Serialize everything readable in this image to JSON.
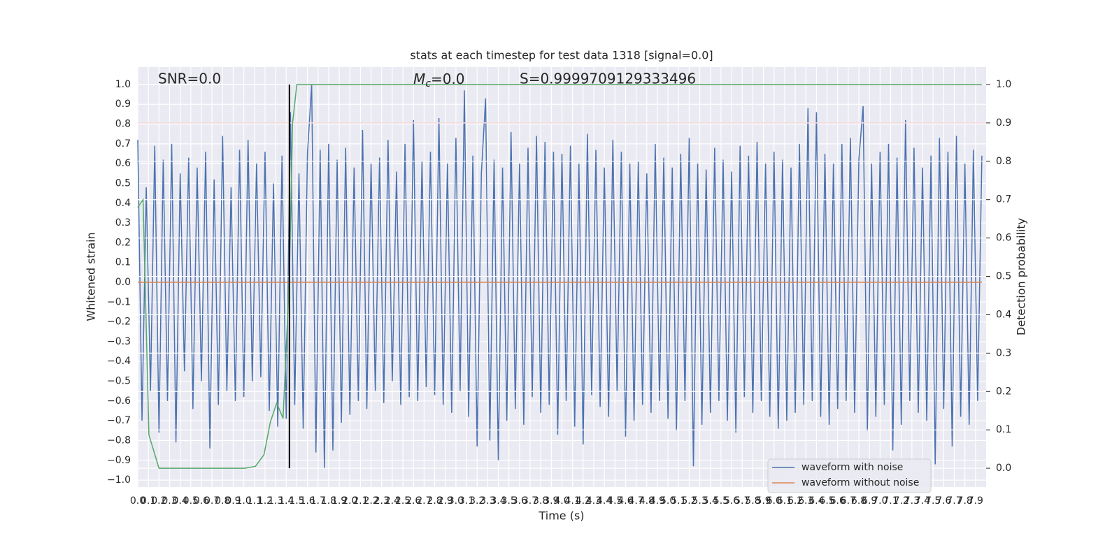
{
  "chart_data": {
    "type": "line",
    "title": "stats at each timestep for test data 1318 [signal=0.0]",
    "x_label": "Time (s)",
    "y_label": "Whitened strain",
    "y2_label": "Detection probability",
    "annotations": {
      "snr": "SNR=0.0",
      "mc": {
        "symbol": "M",
        "subscript": "c",
        "text": "=0.0"
      },
      "s": "S=0.9999709129333496"
    },
    "grid": true,
    "legend": "lower right",
    "xlim": [
      0,
      8
    ],
    "ylim": [
      -1.035,
      1.088
    ],
    "y2lim": [
      -0.049,
      1.0455
    ],
    "xticks": [
      {
        "value": 0,
        "label": "0.0"
      },
      0.1,
      0.2,
      0.3,
      0.4,
      0.5,
      0.6,
      0.7,
      0.8,
      0.9,
      {
        "value": 1,
        "label": "1.0"
      },
      1.1,
      1.2,
      1.3,
      1.4,
      1.5,
      1.6,
      1.7,
      1.8,
      1.9,
      {
        "value": 2,
        "label": "2.0"
      },
      2.1,
      2.2,
      2.3,
      2.4,
      2.5,
      2.6,
      2.7,
      2.8,
      2.9,
      {
        "value": 3,
        "label": "3.0"
      },
      3.1,
      3.2,
      3.3,
      3.4,
      3.5,
      3.6,
      3.7,
      3.8,
      3.9,
      {
        "value": 4,
        "label": "4.0"
      },
      4.1,
      4.2,
      4.3,
      4.4,
      4.5,
      4.6,
      4.7,
      4.8,
      4.9,
      {
        "value": 5,
        "label": "5.0"
      },
      5.1,
      5.2,
      5.3,
      5.4,
      5.5,
      5.6,
      5.7,
      5.8,
      5.9,
      {
        "value": 6,
        "label": "6.0"
      },
      6.1,
      6.2,
      6.3,
      6.4,
      6.5,
      6.6,
      6.7,
      6.8,
      6.9,
      {
        "value": 7,
        "label": "7.0"
      },
      7.1,
      7.2,
      7.3,
      7.4,
      7.5,
      7.6,
      7.7,
      7.8,
      7.9
    ],
    "yticks": [
      {
        "value": -1,
        "label": "−1.0"
      },
      {
        "value": -0.9,
        "label": "−0.9"
      },
      {
        "value": -0.8,
        "label": "−0.8"
      },
      {
        "value": -0.7,
        "label": "−0.7"
      },
      {
        "value": -0.6,
        "label": "−0.6"
      },
      {
        "value": -0.5,
        "label": "−0.5"
      },
      {
        "value": -0.4,
        "label": "−0.4"
      },
      {
        "value": -0.3,
        "label": "−0.3"
      },
      {
        "value": -0.2,
        "label": "−0.2"
      },
      {
        "value": -0.1,
        "label": "−0.1"
      },
      {
        "value": 0,
        "label": "0.0"
      },
      0.1,
      0.2,
      0.3,
      0.4,
      0.5,
      0.6,
      0.7,
      0.8,
      0.9,
      {
        "value": 1,
        "label": "1.0"
      }
    ],
    "y2ticks": [
      {
        "value": 0,
        "label": "0.0"
      },
      0.1,
      0.2,
      0.3,
      0.4,
      0.5,
      0.6,
      0.7,
      0.8,
      0.9,
      {
        "value": 1,
        "label": "1.0"
      }
    ],
    "series": [
      {
        "name": "waveform with noise",
        "color": "#4c72b0",
        "x": [
          0,
          0.04,
          0.08,
          0.12,
          0.16,
          0.2,
          0.24,
          0.28,
          0.32,
          0.36,
          0.4,
          0.44,
          0.48,
          0.52,
          0.56,
          0.6,
          0.64,
          0.68,
          0.72,
          0.76,
          0.8,
          0.84,
          0.88,
          0.92,
          0.96,
          1,
          1.04,
          1.08,
          1.12,
          1.16,
          1.2,
          1.24,
          1.28,
          1.32,
          1.36,
          1.4,
          1.44,
          1.48,
          1.52,
          1.56,
          1.6,
          1.64,
          1.68,
          1.72,
          1.76,
          1.8,
          1.84,
          1.88,
          1.92,
          1.96,
          2,
          2.04,
          2.08,
          2.12,
          2.16,
          2.2,
          2.24,
          2.28,
          2.32,
          2.36,
          2.4,
          2.44,
          2.48,
          2.52,
          2.56,
          2.6,
          2.64,
          2.68,
          2.72,
          2.76,
          2.8,
          2.84,
          2.88,
          2.92,
          2.96,
          3,
          3.04,
          3.08,
          3.12,
          3.16,
          3.2,
          3.24,
          3.28,
          3.32,
          3.36,
          3.4,
          3.44,
          3.48,
          3.52,
          3.56,
          3.6,
          3.64,
          3.68,
          3.72,
          3.76,
          3.8,
          3.84,
          3.88,
          3.92,
          3.96,
          4,
          4.04,
          4.08,
          4.12,
          4.16,
          4.2,
          4.24,
          4.28,
          4.32,
          4.36,
          4.4,
          4.44,
          4.48,
          4.52,
          4.56,
          4.6,
          4.64,
          4.68,
          4.72,
          4.76,
          4.8,
          4.84,
          4.88,
          4.92,
          4.96,
          5,
          5.04,
          5.08,
          5.12,
          5.16,
          5.2,
          5.24,
          5.28,
          5.32,
          5.36,
          5.4,
          5.44,
          5.48,
          5.52,
          5.56,
          5.6,
          5.64,
          5.68,
          5.72,
          5.76,
          5.8,
          5.84,
          5.88,
          5.92,
          5.96,
          6,
          6.04,
          6.08,
          6.12,
          6.16,
          6.2,
          6.24,
          6.28,
          6.32,
          6.36,
          6.4,
          6.44,
          6.48,
          6.52,
          6.56,
          6.6,
          6.64,
          6.68,
          6.72,
          6.76,
          6.8,
          6.84,
          6.88,
          6.92,
          6.96,
          7,
          7.04,
          7.08,
          7.12,
          7.16,
          7.2,
          7.24,
          7.28,
          7.32,
          7.36,
          7.4,
          7.44,
          7.48,
          7.52,
          7.56,
          7.6,
          7.64,
          7.68,
          7.72,
          7.76,
          7.8,
          7.84,
          7.88,
          7.92,
          7.96
        ],
        "values": [
          0.72,
          -0.7,
          0.48,
          -0.55,
          0.69,
          -0.76,
          0.62,
          -0.6,
          0.7,
          -0.81,
          0.55,
          -0.45,
          0.63,
          -0.64,
          0.58,
          -0.5,
          0.66,
          -0.84,
          0.52,
          -0.62,
          0.74,
          -0.55,
          0.48,
          -0.6,
          0.67,
          -0.58,
          0.72,
          -0.5,
          0.6,
          -0.48,
          0.66,
          -0.65,
          0.5,
          -0.73,
          0.64,
          -0.69,
          0.86,
          -0.62,
          0.55,
          -0.74,
          0.65,
          1.0,
          -0.86,
          0.67,
          -0.94,
          0.7,
          -0.85,
          0.62,
          -0.71,
          0.68,
          -0.67,
          0.58,
          -0.6,
          0.77,
          -0.64,
          0.6,
          -0.55,
          0.63,
          -0.61,
          0.72,
          -0.5,
          0.56,
          -0.62,
          0.7,
          -0.58,
          0.82,
          -0.6,
          0.61,
          -0.53,
          0.66,
          -0.57,
          0.83,
          -0.62,
          0.6,
          -0.66,
          0.73,
          -0.55,
          0.97,
          -0.68,
          0.64,
          -0.83,
          0.55,
          0.93,
          -0.8,
          0.62,
          -0.9,
          0.58,
          -0.7,
          0.76,
          -0.64,
          0.6,
          -0.72,
          0.68,
          -0.58,
          0.74,
          -0.66,
          0.71,
          -0.62,
          0.66,
          -0.77,
          0.65,
          -0.6,
          0.69,
          -0.73,
          0.6,
          -0.82,
          0.75,
          -0.57,
          0.67,
          -0.63,
          0.58,
          -0.68,
          0.72,
          -0.55,
          0.66,
          -0.78,
          0.6,
          -0.7,
          0.61,
          -0.62,
          0.55,
          -0.66,
          0.7,
          -0.6,
          0.63,
          -0.69,
          0.58,
          -0.75,
          0.65,
          -0.6,
          0.73,
          -0.93,
          0.6,
          -0.72,
          0.57,
          -0.66,
          0.68,
          -0.6,
          0.62,
          -0.7,
          0.56,
          -0.76,
          0.69,
          -0.58,
          0.64,
          -0.66,
          0.71,
          -0.6,
          0.6,
          -0.68,
          0.66,
          -0.74,
          0.62,
          -0.7,
          0.58,
          -0.66,
          0.7,
          -0.62,
          0.88,
          -0.6,
          0.86,
          -0.68,
          0.65,
          -0.72,
          0.6,
          -0.64,
          0.7,
          -0.6,
          0.73,
          -0.66,
          0.62,
          0.89,
          -0.75,
          0.6,
          -0.68,
          0.66,
          -0.62,
          0.7,
          -0.85,
          0.63,
          -0.72,
          0.82,
          -0.6,
          0.68,
          -0.66,
          0.58,
          -0.7,
          0.64,
          -0.92,
          0.73,
          -0.64,
          0.66,
          -0.83,
          0.74,
          -0.68,
          0.6,
          -0.72,
          0.67,
          -0.6,
          0.64
        ]
      },
      {
        "name": "waveform without noise",
        "color": "#dd8452",
        "x": [
          0,
          7.96
        ],
        "values": [
          0,
          0
        ]
      }
    ],
    "probability": {
      "color": "#55a868",
      "axis": "y2",
      "x": [
        0,
        0.05,
        0.105,
        0.2,
        1.01,
        1.11,
        1.19,
        1.25,
        1.31,
        1.37,
        1.43,
        1.46,
        1.5,
        7.96
      ],
      "values": [
        0.68,
        0.7,
        0.087,
        0,
        0,
        0.005,
        0.035,
        0.12,
        0.17,
        0.13,
        0.5,
        0.9,
        1,
        1
      ]
    },
    "threshold": {
      "value": 0.9,
      "axis": "y2",
      "color": "#c44e52"
    },
    "vline": {
      "x": 1.43,
      "ymin": 0,
      "ymax": 1,
      "axis": "y2",
      "color": "#000000"
    }
  }
}
